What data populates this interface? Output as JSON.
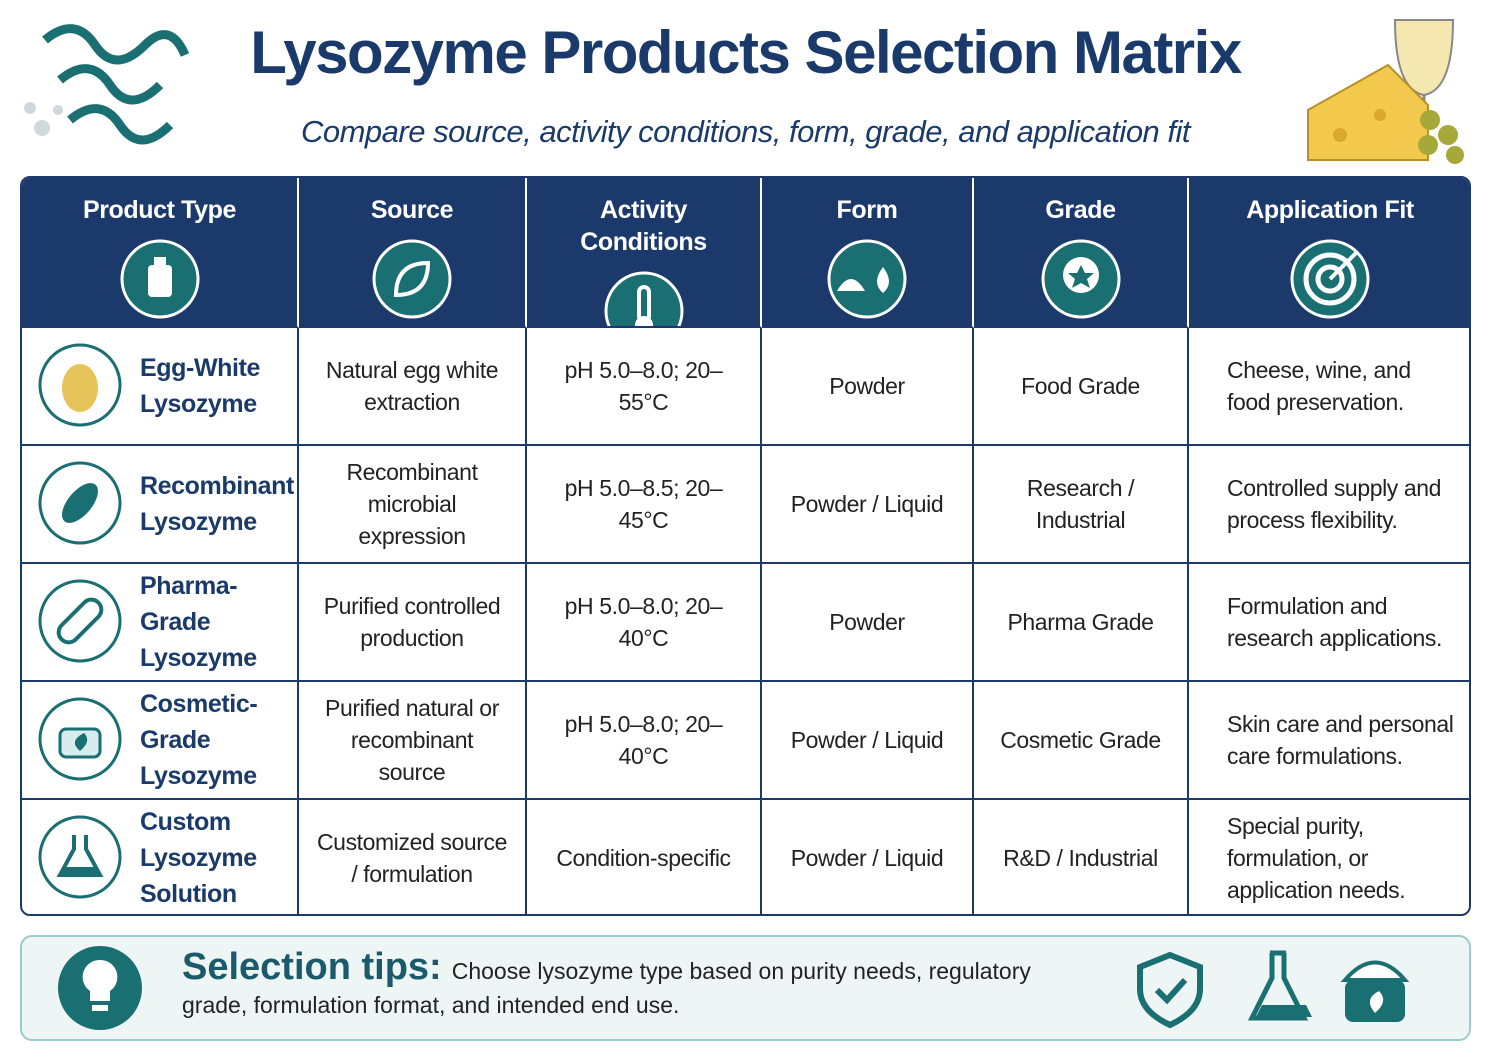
{
  "header": {
    "title": "Lysozyme Products Selection Matrix",
    "subtitle": "Compare source, activity conditions, form, grade, and application fit"
  },
  "table": {
    "columns": [
      "Product Type",
      "Source",
      "Activity Conditions",
      "Form",
      "Grade",
      "Application Fit"
    ],
    "rows": [
      [
        "Egg-White Lysozyme",
        "Natural egg white extraction",
        "pH 5.0–8.0; 20–55°C",
        "Powder",
        "Food Grade",
        "Cheese, wine, and food preservation."
      ],
      [
        "Recombinant Lysozyme",
        "Recombinant microbial expression",
        "pH 5.0–8.5; 20–45°C",
        "Powder / Liquid",
        "Research / Industrial",
        "Controlled supply and process flexibility."
      ],
      [
        "Pharma-Grade Lysozyme",
        "Purified controlled production",
        "pH 5.0–8.0; 20–40°C",
        "Powder",
        "Pharma Grade",
        "Formulation and research applications."
      ],
      [
        "Cosmetic-Grade Lysozyme",
        "Purified natural or recombinant source",
        "pH 5.0–8.0; 20–40°C",
        "Powder / Liquid",
        "Cosmetic Grade",
        "Skin care and personal care formulations."
      ],
      [
        "Custom Lysozyme Solution",
        "Customized source / formulation",
        "Condition-specific",
        "Powder / Liquid",
        "R&D / Industrial",
        "Special purity, formulation, or application needs."
      ]
    ]
  },
  "tips": {
    "label": "Selection tips:",
    "text": "Choose lysozyme type based on purity needs, regulatory grade, formulation format, and intended end use."
  }
}
